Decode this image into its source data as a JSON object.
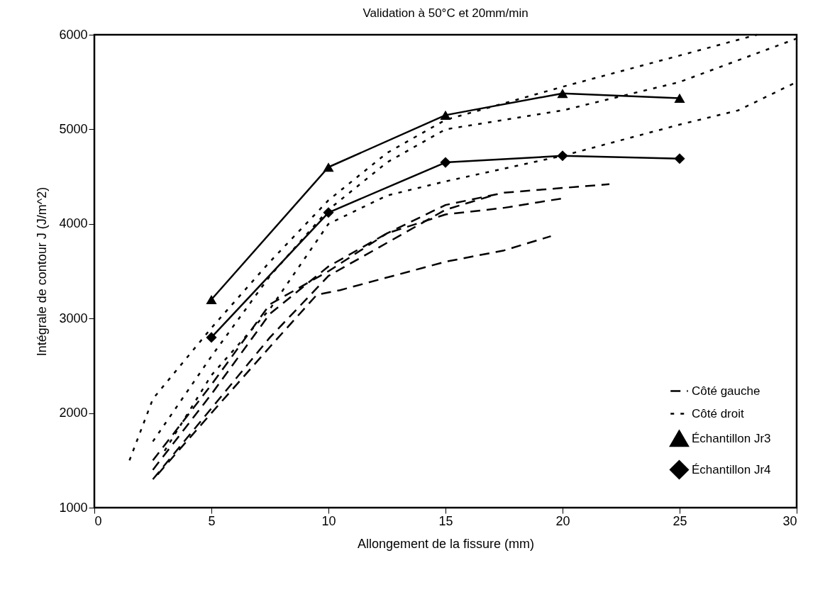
{
  "chart_data": {
    "type": "line",
    "title": "Validation à 50°C et 20mm/min",
    "xlabel": "Allongement de la fissure (mm)",
    "ylabel": "Intégrale de contour J (J/m^2)",
    "xlim": [
      0,
      30
    ],
    "ylim": [
      1000,
      6000
    ],
    "xticks": [
      0,
      5,
      10,
      15,
      20,
      25,
      30
    ],
    "yticks": [
      1000,
      2000,
      3000,
      4000,
      5000,
      6000
    ],
    "grid": false,
    "legend": "bottom right",
    "series": [
      {
        "name": "Côté gauche",
        "color": "#000000",
        "line_style": "dashed",
        "marker": "none",
        "x": [
          2.5,
          5,
          7.5,
          10,
          12.5,
          15,
          17.5,
          20,
          22
        ],
        "values": [
          1500,
          2300,
          3150,
          3500,
          3900,
          4200,
          4330,
          4380,
          4420
        ]
      },
      {
        "color": "#000000",
        "line_style": "dashed",
        "marker": "none",
        "x": [
          2.5,
          5,
          7.5,
          10,
          12.5,
          15,
          17.5,
          20
        ],
        "values": [
          1400,
          2200,
          3050,
          3550,
          3900,
          4100,
          4170,
          4270
        ]
      },
      {
        "color": "#000000",
        "line_style": "dashed",
        "marker": "none",
        "x": [
          2.5,
          5,
          7.5,
          10,
          12.5,
          15,
          17
        ],
        "values": [
          1300,
          2050,
          2800,
          3450,
          3800,
          4150,
          4300
        ]
      },
      {
        "color": "#000000",
        "line_style": "dashed",
        "marker": "none",
        "x": [
          2.7,
          5,
          7.5,
          9.5,
          10.5,
          15,
          17.5,
          19.5
        ],
        "values": [
          1350,
          2000,
          2700,
          3250,
          3300,
          3600,
          3720,
          3870
        ]
      },
      {
        "name": "Côté droit",
        "color": "#000000",
        "line_style": "dotted",
        "marker": "none",
        "x": [
          1.5,
          2.5,
          5,
          7.5,
          10,
          12.5,
          15,
          20,
          25,
          28.3
        ],
        "values": [
          1500,
          2150,
          2900,
          3600,
          4250,
          4750,
          5100,
          5450,
          5780,
          6000
        ]
      },
      {
        "color": "#000000",
        "line_style": "dotted",
        "marker": "none",
        "x": [
          2.5,
          5,
          7.5,
          10,
          12.5,
          15,
          20,
          25,
          30
        ],
        "values": [
          1700,
          2600,
          3450,
          4150,
          4650,
          5000,
          5200,
          5500,
          5960
        ]
      },
      {
        "color": "#000000",
        "line_style": "dotted",
        "marker": "none",
        "x": [
          3,
          5,
          7.5,
          10,
          12.5,
          15,
          20,
          25,
          27.5,
          30
        ],
        "values": [
          1600,
          2400,
          3100,
          4000,
          4300,
          4450,
          4720,
          5050,
          5200,
          5500
        ]
      },
      {
        "name": "Échantillon Jr3",
        "color": "#000000",
        "line_style": "solid",
        "marker": "triangle",
        "x": [
          5,
          10,
          15,
          20,
          25
        ],
        "values": [
          3200,
          4600,
          5150,
          5380,
          5330
        ]
      },
      {
        "name": "Échantillon Jr4",
        "color": "#000000",
        "line_style": "solid",
        "marker": "diamond",
        "x": [
          5,
          10,
          15,
          20,
          25
        ],
        "values": [
          2800,
          4120,
          4650,
          4720,
          4690
        ]
      }
    ]
  }
}
